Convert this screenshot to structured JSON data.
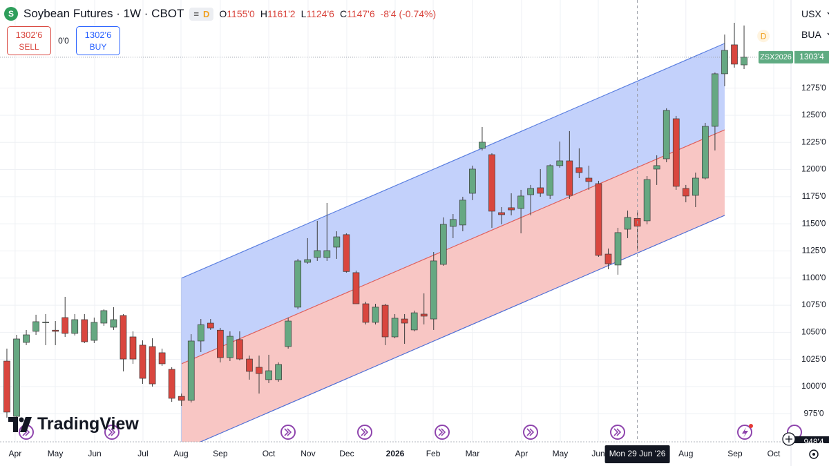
{
  "header": {
    "title": "Soybean Futures · 1W · CBOT",
    "interval_badge": "D",
    "ohlc": [
      {
        "key": "O",
        "value": "1155'0"
      },
      {
        "key": "H",
        "value": "1161'2"
      },
      {
        "key": "L",
        "value": "1124'6"
      },
      {
        "key": "C",
        "value": "1147'6"
      }
    ],
    "change": "-8'4 (-0.74%)"
  },
  "trade": {
    "sell_price": "1302'6",
    "sell_label": "SELL",
    "spread": "0'0",
    "buy_price": "1302'6",
    "buy_label": "BUY"
  },
  "toolbar": {
    "currency": "USX",
    "unit": "BUA"
  },
  "logo": "TradingView",
  "chart_data": {
    "type": "candlestick",
    "open": [
      1023.5,
      972.6,
      1040.7,
      1050.9,
      1059,
      1052,
      1063.6,
      1049,
      1061.7,
      1042.6,
      1058.5,
      1054.7,
      1065.5,
      1045.8,
      1038.2,
      1036.9,
      1031.2,
      1015.9,
      991,
      987.3,
      1042,
      1058.5,
      1052,
      1026.7,
      1043.3,
      1025.4,
      1017.8,
      1006.4,
      1006.4,
      1036.9,
      1073.2,
      1114.5,
      1119,
      1118.9,
      1128.5,
      1140,
      1105,
      1076.3,
      1059.2,
      1075,
      1045.8,
      1062.3,
      1052.2,
      1066.8,
      1062.3,
      1112.6,
      1147.6,
      1148.9,
      1178.1,
      1219.5,
      1213.7,
      1160.3,
      1164.8,
      1164.1,
      1176.8,
      1183.2,
      1176.2,
      1203.6,
      1208,
      1201.7,
      1192.1,
      1187,
      1122.1,
      1112,
      1145,
      1155,
      1152.7,
      1200.4,
      1209.9,
      1246.8,
      1182.6,
      1176.2,
      1192.1,
      1239.8,
      1288.2,
      1314.9,
      1296.4
    ],
    "high": [
      1035,
      1047.7,
      1052.2,
      1066.2,
      1066.8,
      1060.4,
      1082.7,
      1066.8,
      1066.8,
      1063.6,
      1071.2,
      1073.2,
      1066.8,
      1050.9,
      1042.6,
      1044.5,
      1035,
      1017.8,
      993.6,
      1048.3,
      1062.3,
      1062.3,
      1054.1,
      1050.9,
      1050.9,
      1028.6,
      1028.6,
      1029.3,
      1022.3,
      1063.6,
      1117.7,
      1136.8,
      1152.7,
      1169.2,
      1143.1,
      1141.2,
      1106.9,
      1078.2,
      1076.3,
      1076.3,
      1066.8,
      1066.8,
      1070,
      1085.9,
      1124,
      1155.9,
      1159,
      1174.9,
      1203.6,
      1239.2,
      1215,
      1165.4,
      1178.1,
      1181.3,
      1185.8,
      1200.4,
      1204.8,
      1225.8,
      1235.4,
      1219.5,
      1203.6,
      1189.6,
      1127.2,
      1146.3,
      1162.2,
      1161.25,
      1194,
      1213.1,
      1256.4,
      1249.4,
      1185.8,
      1197.2,
      1243,
      1289.4,
      1324.4,
      1335.2,
      1332.7
    ],
    "low": [
      971.4,
      970.7,
      1038.2,
      1047.7,
      1038.2,
      1038.2,
      1045.8,
      1047.1,
      1040.1,
      1040.1,
      1056,
      1052.2,
      1014,
      1021,
      1002.5,
      1000,
      1019.1,
      986,
      982.2,
      985.4,
      1031.8,
      1052.2,
      1022.3,
      1023.5,
      1024.2,
      1006.4,
      993.6,
      1003.2,
      1004.5,
      1035,
      1071.2,
      1113.2,
      1115.8,
      1115.8,
      1117.7,
      1105,
      1076.3,
      1057.3,
      1057.3,
      1038.2,
      1044.5,
      1039.4,
      1050.9,
      1057.3,
      1052.2,
      1111.3,
      1136.8,
      1143.1,
      1171.8,
      1217.6,
      1146.3,
      1149.5,
      1157.8,
      1141.2,
      1157.8,
      1174.9,
      1173,
      1201.7,
      1173,
      1192.1,
      1181.3,
      1119.6,
      1108.1,
      1103.1,
      1136.8,
      1124.75,
      1149.5,
      1185.8,
      1206.7,
      1181.3,
      1169.8,
      1165.4,
      1190.8,
      1217.6,
      1276.7,
      1293.9,
      1292.6
    ],
    "close": [
      976.5,
      1043.9,
      1047.7,
      1059.8,
      1059.5,
      1050.9,
      1049,
      1061.7,
      1041.3,
      1059.2,
      1070,
      1061.7,
      1025.4,
      1025.4,
      1007.6,
      1002.5,
      1021,
      989.2,
      987.3,
      1042,
      1057,
      1054,
      1026.7,
      1046.4,
      1025.4,
      1014,
      1012,
      1014.6,
      1020.4,
      1060.4,
      1115.8,
      1117,
      1125.3,
      1125.3,
      1138,
      1106,
      1076.3,
      1059.2,
      1073.2,
      1045.8,
      1063,
      1058.5,
      1068,
      1064.9,
      1115.8,
      1149.5,
      1154,
      1171.8,
      1200.4,
      1225.2,
      1161.6,
      1158.4,
      1162.8,
      1175.6,
      1182.6,
      1178.1,
      1203.6,
      1208,
      1176.2,
      1197.2,
      1188.9,
      1120.9,
      1113.2,
      1141.9,
      1155.9,
      1147.75,
      1190.8,
      1203.6,
      1254.5,
      1184.5,
      1175.6,
      1192.1,
      1239.8,
      1288.2,
      1309.8,
      1297.1,
      1303.5
    ],
    "up_color": "#66a882",
    "down_color": "#d9463e",
    "wick_color": "#3b3b3b",
    "xlim": [
      -0.71,
      80.84
    ],
    "xticks": [
      {
        "value": 0.85,
        "label": "Apr"
      },
      {
        "value": 4.99,
        "label": "May"
      },
      {
        "value": 9.05,
        "label": "Jun"
      },
      {
        "value": 14.03,
        "label": "Jul"
      },
      {
        "value": 17.95,
        "label": "Aug"
      },
      {
        "value": 22,
        "label": "Sep"
      },
      {
        "value": 27,
        "label": "Oct"
      },
      {
        "value": 31.05,
        "label": "Nov"
      },
      {
        "value": 35.04,
        "label": "Dec"
      },
      {
        "value": 40.03,
        "label": "2026"
      },
      {
        "value": 43.95,
        "label": "Feb"
      },
      {
        "value": 48,
        "label": "Mar"
      },
      {
        "value": 53.06,
        "label": "Apr"
      },
      {
        "value": 57.05,
        "label": "May"
      },
      {
        "value": 60.97,
        "label": "Jun"
      },
      {
        "value": 70,
        "label": "Aug"
      },
      {
        "value": 75.07,
        "label": "Sep"
      },
      {
        "value": 79.06,
        "label": "Oct"
      }
    ],
    "ylim": [
      949.1,
      1356.2
    ],
    "yticks": [
      {
        "value": 975,
        "label": "975'0"
      },
      {
        "value": 1000,
        "label": "1000'0"
      },
      {
        "value": 1025,
        "label": "1025'0"
      },
      {
        "value": 1050,
        "label": "1050'0"
      },
      {
        "value": 1075,
        "label": "1075'0"
      },
      {
        "value": 1100,
        "label": "1100'0"
      },
      {
        "value": 1125,
        "label": "1125'0"
      },
      {
        "value": 1150,
        "label": "1150'0"
      },
      {
        "value": 1175,
        "label": "1175'0"
      },
      {
        "value": 1200,
        "label": "1200'0"
      },
      {
        "value": 1225,
        "label": "1225'0"
      },
      {
        "value": 1250,
        "label": "1250'0"
      },
      {
        "value": 1275,
        "label": "1275'0"
      }
    ],
    "grid": true,
    "channel": {
      "x": [
        18,
        74
      ],
      "upper": [
        1099.9,
        1316.2
      ],
      "middle": [
        1021,
        1236.6
      ],
      "lower": [
        941.5,
        1157.8
      ],
      "upper_fill": "#c3d1fb",
      "lower_fill": "#f8c6c4",
      "upper_line": "#5b7fe0",
      "middle_line": "#e0605c",
      "lower_line": "#4f6fd6"
    },
    "last_price": {
      "value": 1303.5,
      "label": "1303'4",
      "symbol": "ZSX2026",
      "color": "#5fab82"
    },
    "crosshair": {
      "x": 65,
      "x_label": "Mon 29 Jun '26",
      "y": 948.5,
      "y_label": "948'4"
    },
    "flag": {
      "x": 78,
      "y": 1323,
      "label": "D",
      "color": "#f0a020"
    }
  }
}
